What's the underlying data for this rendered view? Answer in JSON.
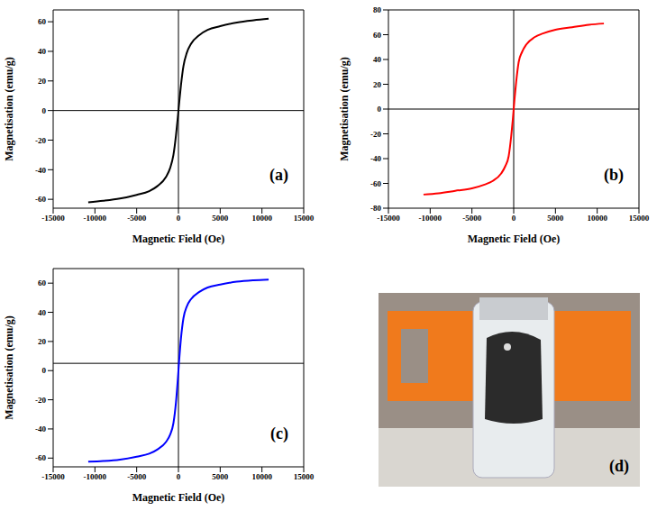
{
  "chart_data": [
    {
      "type": "line",
      "annotation": "(a)",
      "xlabel": "Magnetic Field (Oe)",
      "ylabel": "Magnetisation (emu/g)",
      "color": "#000000",
      "xlim": [
        -15000,
        15000
      ],
      "xticks": [
        -15000,
        -10000,
        -5000,
        0,
        5000,
        10000,
        15000
      ],
      "ylim": [
        -66,
        68
      ],
      "yticks": [
        -60,
        -40,
        -20,
        0,
        20,
        40,
        60
      ],
      "reference_lines": {
        "x": 0,
        "y": 0
      },
      "x": [
        -10800,
        -9000,
        -7000,
        -5000,
        -3500,
        -2500,
        -1500,
        -1000,
        -600,
        -300,
        -100,
        0,
        100,
        300,
        600,
        1000,
        1500,
        2500,
        3500,
        5000,
        7000,
        9000,
        10800
      ],
      "values": [
        -62,
        -61,
        -59.5,
        -57,
        -54.5,
        -51,
        -45,
        -39,
        -30,
        -17,
        -6,
        0,
        6,
        17,
        30,
        39,
        45,
        51,
        54.5,
        57,
        59.5,
        61,
        62
      ]
    },
    {
      "type": "line",
      "annotation": "(b)",
      "xlabel": "Magnetic Field (Oe)",
      "ylabel": "Magnetisation (emu/g)",
      "color": "#ff0000",
      "xlim": [
        -15000,
        15000
      ],
      "xticks": [
        -15000,
        -10000,
        -5000,
        0,
        5000,
        10000,
        15000
      ],
      "ylim": [
        -80,
        80
      ],
      "yticks": [
        -80,
        -60,
        -40,
        -20,
        0,
        20,
        40,
        60,
        80
      ],
      "reference_lines": {
        "x": 0,
        "y": 0
      },
      "x": [
        -10800,
        -9000,
        -7000,
        -5000,
        -3500,
        -2500,
        -1500,
        -1000,
        -600,
        -300,
        -100,
        0,
        100,
        300,
        600,
        1000,
        1500,
        2500,
        3500,
        5000,
        7000,
        9000,
        10800
      ],
      "values": [
        -69,
        -68,
        -66,
        -64,
        -61,
        -58,
        -52,
        -46,
        -38,
        -22,
        -8,
        0,
        8,
        22,
        38,
        46,
        52,
        58,
        61,
        64,
        66,
        68,
        69
      ]
    },
    {
      "type": "line",
      "annotation": "(c)",
      "xlabel": "Magnetic Field (Oe)",
      "ylabel": "Magnetisation (emu/g)",
      "color": "#0000ff",
      "xlim": [
        -15000,
        15000
      ],
      "xticks": [
        -15000,
        -10000,
        -5000,
        0,
        5000,
        10000,
        15000
      ],
      "ylim": [
        -66,
        70
      ],
      "yticks": [
        -60,
        -40,
        -20,
        0,
        20,
        40,
        60
      ],
      "reference_lines": {
        "x": 0,
        "y": 5
      },
      "x": [
        -10800,
        -9000,
        -7000,
        -5000,
        -3500,
        -2500,
        -1500,
        -1000,
        -600,
        -300,
        -100,
        0,
        100,
        300,
        600,
        1000,
        1500,
        2500,
        3500,
        5000,
        7000,
        9000,
        10800
      ],
      "values": [
        -62.5,
        -62,
        -61,
        -59,
        -57,
        -54,
        -49,
        -44,
        -36,
        -22,
        -8,
        0,
        8,
        22,
        36,
        44,
        49,
        54,
        57,
        59,
        61,
        62,
        62.5
      ]
    }
  ],
  "photo": {
    "annotation": "(d)"
  }
}
